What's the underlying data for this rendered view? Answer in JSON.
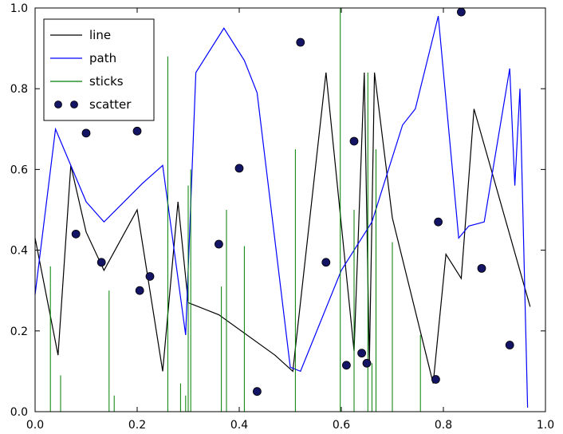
{
  "figure": {
    "background": "#ffffff",
    "frame_color": "#000000"
  },
  "chart_data": {
    "type": "mixed",
    "title": "",
    "xlabel": "",
    "ylabel": "",
    "xlim": [
      0.0,
      1.0
    ],
    "ylim": [
      0.0,
      1.0
    ],
    "grid": false,
    "tick_direction": "in",
    "xticks": [
      "0.0",
      "0.2",
      "0.4",
      "0.6",
      "0.8",
      "1.0"
    ],
    "yticks": [
      "0.0",
      "0.2",
      "0.4",
      "0.6",
      "0.8",
      "1.0"
    ],
    "legend": {
      "position": "upper-left",
      "entries": [
        "line",
        "path",
        "sticks",
        "scatter"
      ]
    },
    "series": [
      {
        "name": "line",
        "type": "line",
        "color": "#000000",
        "x": [
          0.0,
          0.045,
          0.07,
          0.1,
          0.135,
          0.2,
          0.25,
          0.28,
          0.3,
          0.36,
          0.47,
          0.505,
          0.57,
          0.625,
          0.645,
          0.655,
          0.665,
          0.7,
          0.78,
          0.805,
          0.835,
          0.86,
          0.97
        ],
        "y": [
          0.43,
          0.14,
          0.61,
          0.445,
          0.35,
          0.5,
          0.1,
          0.52,
          0.27,
          0.24,
          0.14,
          0.1,
          0.84,
          0.15,
          0.84,
          0.12,
          0.84,
          0.48,
          0.07,
          0.39,
          0.33,
          0.75,
          0.26
        ]
      },
      {
        "name": "path",
        "type": "line",
        "color": "#0000ff",
        "x": [
          0.0,
          0.04,
          0.1,
          0.135,
          0.21,
          0.25,
          0.295,
          0.315,
          0.37,
          0.41,
          0.435,
          0.5,
          0.52,
          0.6,
          0.66,
          0.72,
          0.745,
          0.79,
          0.83,
          0.85,
          0.88,
          0.93,
          0.94,
          0.95,
          0.965
        ],
        "y": [
          0.29,
          0.7,
          0.52,
          0.47,
          0.565,
          0.61,
          0.19,
          0.84,
          0.95,
          0.87,
          0.79,
          0.11,
          0.1,
          0.35,
          0.47,
          0.71,
          0.75,
          0.98,
          0.43,
          0.46,
          0.47,
          0.85,
          0.56,
          0.8,
          0.01
        ]
      },
      {
        "name": "sticks",
        "type": "sticks",
        "color": "#007f00",
        "x": [
          0.03,
          0.05,
          0.145,
          0.155,
          0.26,
          0.285,
          0.295,
          0.3,
          0.305,
          0.365,
          0.375,
          0.41,
          0.51,
          0.598,
          0.625,
          0.652,
          0.66,
          0.668,
          0.7,
          0.755
        ],
        "y": [
          0.36,
          0.09,
          0.3,
          0.04,
          0.88,
          0.07,
          0.04,
          0.56,
          0.6,
          0.31,
          0.5,
          0.41,
          0.65,
          1.0,
          0.5,
          0.84,
          0.12,
          0.65,
          0.42,
          0.19
        ]
      },
      {
        "name": "scatter",
        "type": "scatter",
        "color": "#141464",
        "edge_color": "#000000",
        "x": [
          0.08,
          0.1,
          0.13,
          0.2,
          0.205,
          0.225,
          0.36,
          0.4,
          0.435,
          0.52,
          0.57,
          0.61,
          0.625,
          0.64,
          0.65,
          0.785,
          0.79,
          0.835,
          0.875,
          0.93
        ],
        "y": [
          0.44,
          0.69,
          0.37,
          0.695,
          0.3,
          0.335,
          0.415,
          0.603,
          0.05,
          0.915,
          0.37,
          0.115,
          0.67,
          0.145,
          0.12,
          0.08,
          0.47,
          0.99,
          0.355,
          0.165
        ]
      }
    ]
  }
}
